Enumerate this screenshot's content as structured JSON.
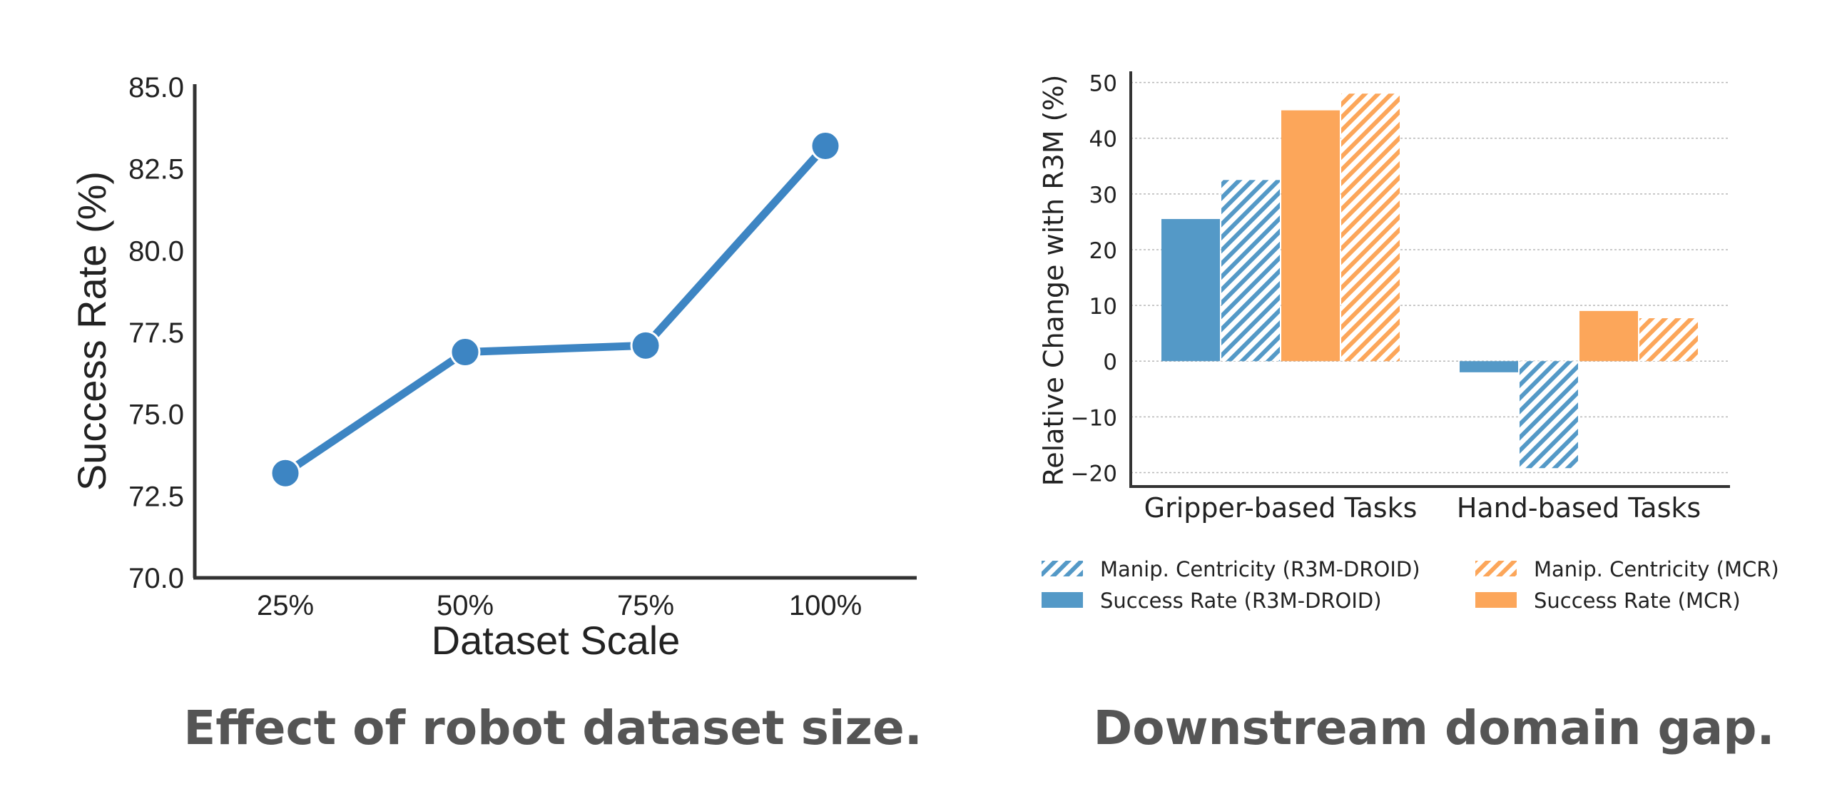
{
  "captions": {
    "left": "Effect of robot dataset size.",
    "right": "Downstream domain gap."
  },
  "chart_data": [
    {
      "type": "line",
      "title": "",
      "xlabel": "Dataset Scale",
      "ylabel": "Success Rate (%)",
      "categories": [
        "25%",
        "50%",
        "75%",
        "100%"
      ],
      "values": [
        73.2,
        76.9,
        77.1,
        83.2
      ],
      "ylim": [
        70.0,
        85.0
      ],
      "yticks": [
        "70.0",
        "72.5",
        "75.0",
        "77.5",
        "80.0",
        "82.5",
        "85.0"
      ],
      "grid": false,
      "color": "#3d85c3"
    },
    {
      "type": "bar",
      "title": "",
      "xlabel": "",
      "ylabel": "Relative Change with R3M (%)",
      "categories": [
        "Gripper-based Tasks",
        "Hand-based Tasks"
      ],
      "series": [
        {
          "name": "Success Rate (R3M-DROID)",
          "values": [
            25.5,
            -2.0
          ],
          "color": "#5499c7",
          "pattern": "solid"
        },
        {
          "name": "Manip. Centricity (R3M-DROID)",
          "values": [
            32.5,
            -19.2
          ],
          "color": "#5499c7",
          "pattern": "hatched"
        },
        {
          "name": "Success Rate (MCR)",
          "values": [
            45.0,
            9.0
          ],
          "color": "#fca65a",
          "pattern": "solid"
        },
        {
          "name": "Manip. Centricity (MCR)",
          "values": [
            48.0,
            7.7
          ],
          "color": "#fca65a",
          "pattern": "hatched"
        }
      ],
      "ylim": [
        -22.5,
        52.0
      ],
      "yticks": [
        "-20",
        "-10",
        "0",
        "10",
        "20",
        "30",
        "40",
        "50"
      ],
      "grid": true,
      "legend_position": "bottom",
      "legend_order": [
        1,
        3,
        0,
        2
      ]
    }
  ]
}
